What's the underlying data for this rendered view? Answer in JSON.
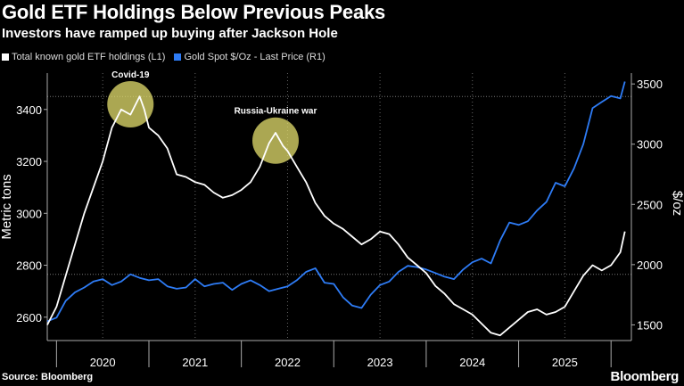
{
  "header": {
    "title": "Gold ETF Holdings Below Previous Peaks",
    "subtitle": "Investors have ramped up buying after Jackson Hole"
  },
  "footer": {
    "source": "Source: Bloomberg",
    "brand": "Bloomberg"
  },
  "colors": {
    "background": "#000000",
    "holdings": "#ffffff",
    "spot": "#2e7cf6",
    "highlight": "#e4df6e",
    "grid": "#666666"
  },
  "chart_data": {
    "type": "line",
    "title": "Gold ETF Holdings Below Previous Peaks",
    "subtitle": "Investors have ramped up buying after Jackson Hole",
    "xlabel": "",
    "ylabel_left": "Metric tons",
    "ylabel_right": "$/oz",
    "x_range": [
      2019.4,
      2025.72
    ],
    "ylim_left": [
      2510,
      3540
    ],
    "ylim_right": [
      1370,
      3590
    ],
    "y_ticks_left": [
      2600,
      2800,
      3000,
      3200,
      3400
    ],
    "y_ticks_right": [
      1500,
      2000,
      2500,
      3000,
      3500
    ],
    "x_tick_labels": [
      {
        "label": "2020",
        "at": 2020.0
      },
      {
        "label": "2021",
        "at": 2021.0
      },
      {
        "label": "2022",
        "at": 2022.0
      },
      {
        "label": "2023",
        "at": 2023.0
      },
      {
        "label": "2024",
        "at": 2024.0
      },
      {
        "label": "2025",
        "at": 2025.0
      }
    ],
    "x_tick_marks": [
      2019.5,
      2020.5,
      2021.5,
      2022.5,
      2023.5,
      2024.5,
      2025.5
    ],
    "dotted_reference_left": [
      3450,
      2765
    ],
    "grid": "vertical dotted",
    "annotations": [
      {
        "label": "Covid-19",
        "x": 2020.3,
        "y": 3420
      },
      {
        "label": "Russia-Ukraine war",
        "x": 2021.87,
        "y": 3280
      }
    ],
    "series": [
      {
        "name": "Total known gold ETF holdings (L1)",
        "axis": "left",
        "x": [
          2019.4,
          2019.5,
          2019.6,
          2019.7,
          2019.8,
          2019.9,
          2020.0,
          2020.1,
          2020.2,
          2020.3,
          2020.4,
          2020.45,
          2020.5,
          2020.6,
          2020.7,
          2020.8,
          2020.9,
          2021.0,
          2021.1,
          2021.2,
          2021.3,
          2021.4,
          2021.5,
          2021.6,
          2021.7,
          2021.8,
          2021.87,
          2021.95,
          2022.0,
          2022.1,
          2022.2,
          2022.3,
          2022.4,
          2022.5,
          2022.6,
          2022.7,
          2022.8,
          2022.9,
          2023.0,
          2023.1,
          2023.2,
          2023.3,
          2023.4,
          2023.5,
          2023.6,
          2023.7,
          2023.8,
          2023.9,
          2024.0,
          2024.1,
          2024.2,
          2024.3,
          2024.4,
          2024.5,
          2024.6,
          2024.7,
          2024.8,
          2024.9,
          2025.0,
          2025.1,
          2025.2,
          2025.3,
          2025.4,
          2025.5,
          2025.6,
          2025.65
        ],
        "values": [
          2570,
          2640,
          2760,
          2880,
          3000,
          3100,
          3200,
          3330,
          3400,
          3380,
          3450,
          3400,
          3330,
          3300,
          3250,
          3150,
          3140,
          3120,
          3110,
          3080,
          3060,
          3070,
          3090,
          3120,
          3180,
          3270,
          3310,
          3260,
          3240,
          3180,
          3120,
          3040,
          2990,
          2960,
          2940,
          2910,
          2880,
          2900,
          2930,
          2920,
          2880,
          2830,
          2800,
          2770,
          2720,
          2690,
          2650,
          2630,
          2610,
          2575,
          2540,
          2530,
          2560,
          2590,
          2620,
          2630,
          2610,
          2620,
          2640,
          2700,
          2760,
          2800,
          2780,
          2800,
          2850,
          2930
        ]
      },
      {
        "name": "Gold Spot $/Oz - Last Price (R1)",
        "axis": "right",
        "x": [
          2019.4,
          2019.5,
          2019.6,
          2019.7,
          2019.8,
          2019.9,
          2020.0,
          2020.1,
          2020.2,
          2020.3,
          2020.4,
          2020.5,
          2020.6,
          2020.7,
          2020.8,
          2020.9,
          2021.0,
          2021.1,
          2021.2,
          2021.3,
          2021.4,
          2021.5,
          2021.6,
          2021.7,
          2021.8,
          2021.9,
          2022.0,
          2022.1,
          2022.2,
          2022.3,
          2022.4,
          2022.5,
          2022.6,
          2022.7,
          2022.8,
          2022.9,
          2023.0,
          2023.1,
          2023.2,
          2023.3,
          2023.4,
          2023.5,
          2023.6,
          2023.7,
          2023.8,
          2023.9,
          2024.0,
          2024.1,
          2024.2,
          2024.3,
          2024.4,
          2024.5,
          2024.6,
          2024.7,
          2024.8,
          2024.9,
          2025.0,
          2025.1,
          2025.2,
          2025.3,
          2025.4,
          2025.5,
          2025.6,
          2025.65
        ],
        "values": [
          1530,
          1560,
          1700,
          1770,
          1810,
          1860,
          1880,
          1830,
          1860,
          1920,
          1890,
          1870,
          1880,
          1820,
          1800,
          1810,
          1880,
          1820,
          1840,
          1850,
          1790,
          1840,
          1870,
          1830,
          1780,
          1800,
          1820,
          1870,
          1940,
          1970,
          1850,
          1840,
          1730,
          1660,
          1640,
          1750,
          1830,
          1860,
          1940,
          1990,
          1980,
          1960,
          1930,
          1900,
          1880,
          1960,
          2020,
          2050,
          2010,
          2200,
          2350,
          2330,
          2360,
          2450,
          2520,
          2680,
          2650,
          2800,
          3000,
          3300,
          3350,
          3400,
          3380,
          3520
        ]
      }
    ]
  }
}
